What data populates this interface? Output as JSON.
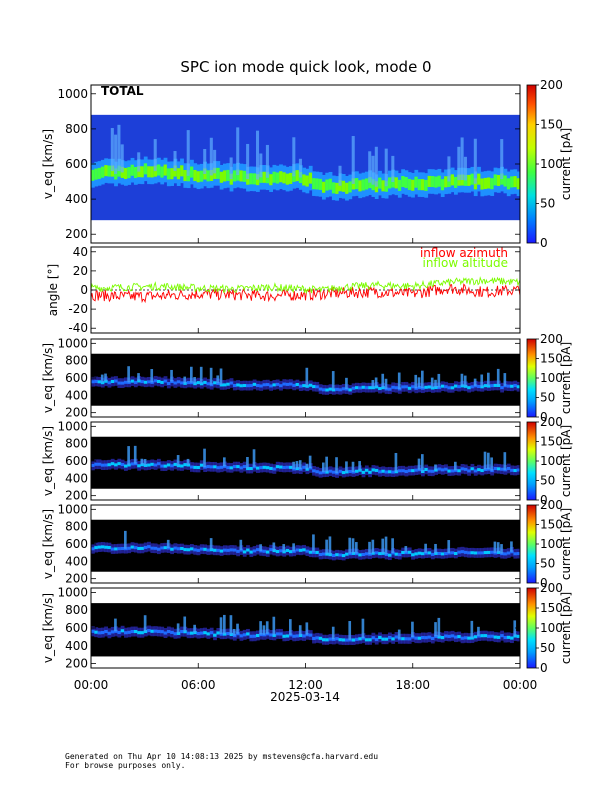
{
  "title": "SPC ion mode quick look, mode 0",
  "x_axis": {
    "ticks": [
      "00:00",
      "06:00",
      "12:00",
      "18:00",
      "00:00"
    ],
    "date_label": "2025-03-14"
  },
  "footer": {
    "line1": "Generated on Thu Apr 10 14:08:13 2025 by mstevens@cfa.harvard.edu",
    "line2": "For browse purposes only."
  },
  "colors": {
    "heat_bg": "#000000",
    "total_low": "#1d3fd8",
    "azimuth": "#ff0000",
    "altitude": "#7cfc00"
  },
  "chart_data": [
    {
      "type": "heatmap",
      "panel_label": "TOTAL",
      "ylabel": "v_eq [km/s]",
      "ylim": [
        150,
        1050
      ],
      "yticks": [
        200,
        400,
        600,
        800,
        1000
      ],
      "colorbar": {
        "label": "current [pA]",
        "range": [
          0,
          200
        ],
        "ticks": [
          0,
          50,
          100,
          150,
          200
        ]
      },
      "data_coverage_km_s": [
        280,
        880
      ],
      "peak_speed_km_s": {
        "time_h": [
          0,
          3,
          6,
          9,
          12,
          13,
          15,
          18,
          21,
          24
        ],
        "v": [
          550,
          560,
          540,
          520,
          520,
          470,
          480,
          490,
          500,
          500
        ]
      }
    },
    {
      "type": "line",
      "ylabel": "angle [°]",
      "ylim": [
        -45,
        45
      ],
      "yticks": [
        -40,
        -20,
        0,
        20,
        40
      ],
      "x_hours": [
        0,
        2,
        4,
        6,
        8,
        10,
        12,
        13,
        14,
        16,
        18,
        20,
        22,
        24
      ],
      "series": [
        {
          "name": "inflow azimuth",
          "values": [
            -5,
            -7,
            -6,
            -4,
            -5,
            -6,
            -5,
            -4,
            -3,
            -2,
            -4,
            2,
            -2,
            0
          ]
        },
        {
          "name": "inflow altitude",
          "values": [
            2,
            3,
            4,
            2,
            1,
            3,
            1,
            0,
            3,
            5,
            4,
            8,
            10,
            8
          ]
        }
      ]
    },
    {
      "type": "heatmap",
      "panel_label": "A sensor",
      "ylabel": "v_eq [km/s]",
      "ylim": [
        150,
        1050
      ],
      "yticks": [
        200,
        400,
        600,
        800,
        1000
      ],
      "colorbar": {
        "label": "current [pA]",
        "range": [
          0,
          200
        ],
        "ticks": [
          0,
          50,
          100,
          150,
          200
        ]
      },
      "data_coverage_km_s": [
        280,
        880
      ]
    },
    {
      "type": "heatmap",
      "panel_label": "B sensor",
      "ylabel": "v_eq [km/s]",
      "ylim": [
        150,
        1050
      ],
      "yticks": [
        200,
        400,
        600,
        800,
        1000
      ],
      "colorbar": {
        "label": "current [pA]",
        "range": [
          0,
          200
        ],
        "ticks": [
          0,
          50,
          100,
          150,
          200
        ]
      },
      "data_coverage_km_s": [
        280,
        880
      ]
    },
    {
      "type": "heatmap",
      "panel_label": "C sensor",
      "ylabel": "v_eq [km/s]",
      "ylim": [
        150,
        1050
      ],
      "yticks": [
        200,
        400,
        600,
        800,
        1000
      ],
      "colorbar": {
        "label": "current [pA]",
        "range": [
          0,
          200
        ],
        "ticks": [
          0,
          50,
          100,
          150,
          200
        ]
      },
      "data_coverage_km_s": [
        280,
        880
      ]
    },
    {
      "type": "heatmap",
      "panel_label": "D sensor",
      "ylabel": "v_eq [km/s]",
      "ylim": [
        150,
        1050
      ],
      "yticks": [
        200,
        400,
        600,
        800,
        1000
      ],
      "colorbar": {
        "label": "current [pA]",
        "range": [
          0,
          200
        ],
        "ticks": [
          0,
          50,
          100,
          150,
          200
        ]
      },
      "data_coverage_km_s": [
        280,
        880
      ]
    }
  ]
}
